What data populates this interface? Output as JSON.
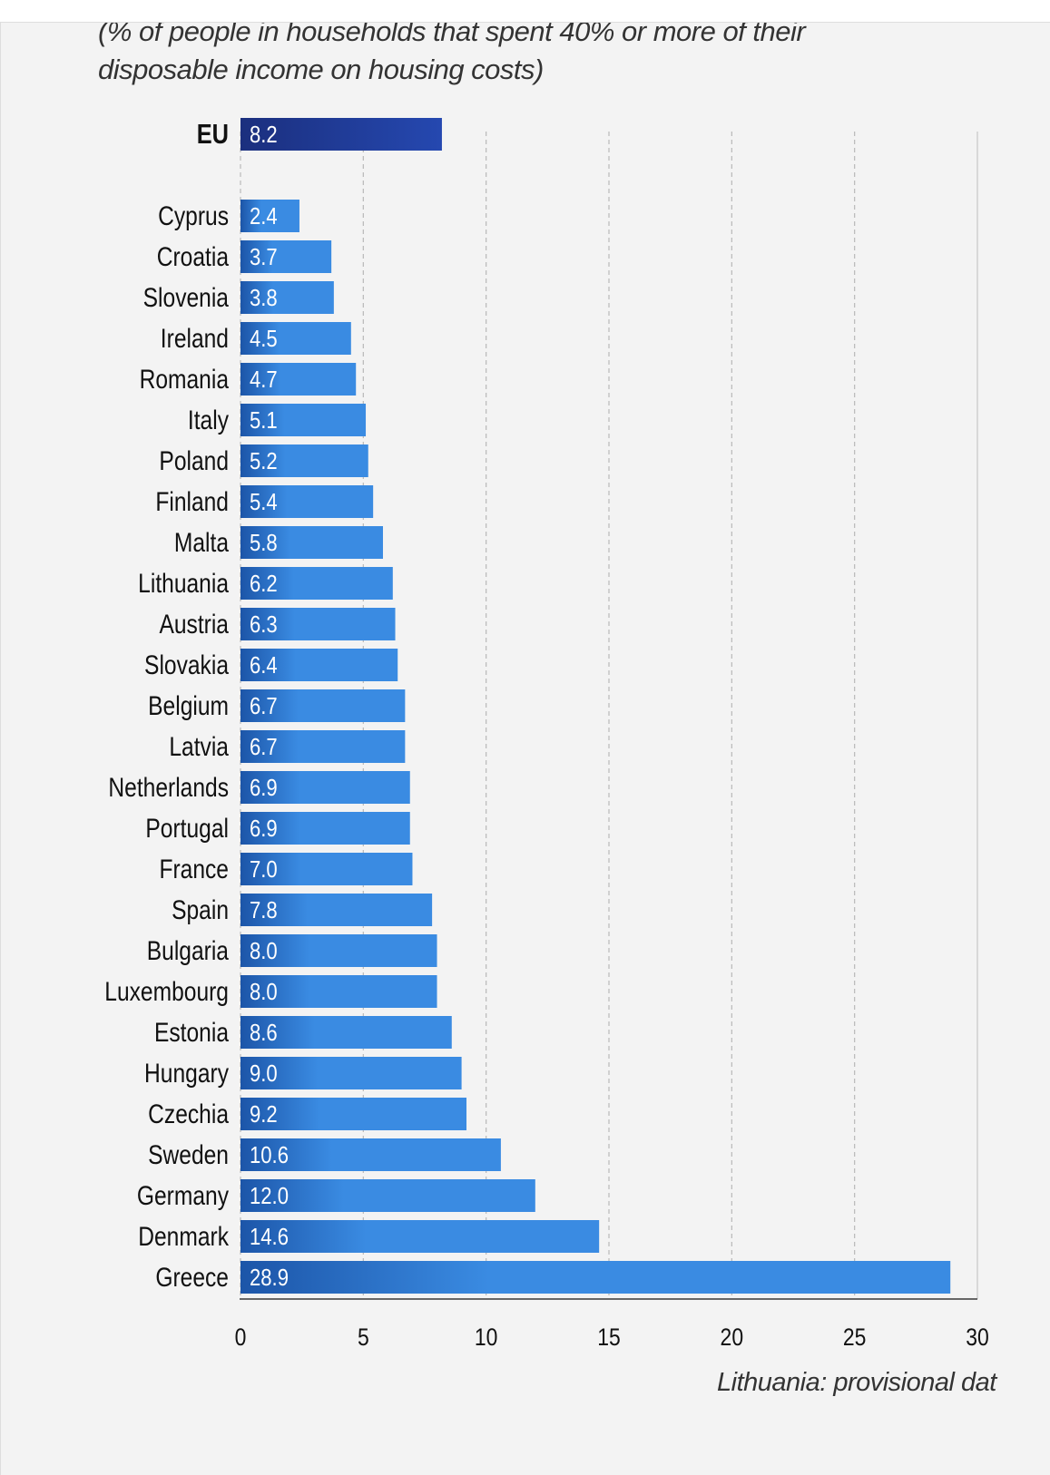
{
  "chart_data": {
    "type": "bar",
    "orientation": "horizontal",
    "subtitle_line1": "(% of people in households that spent 40% or more of their",
    "subtitle_line2": "disposable income on housing costs)",
    "aggregate": {
      "label": "EU",
      "value": 8.2
    },
    "categories": [
      "Cyprus",
      "Croatia",
      "Slovenia",
      "Ireland",
      "Romania",
      "Italy",
      "Poland",
      "Finland",
      "Malta",
      "Lithuania",
      "Austria",
      "Slovakia",
      "Belgium",
      "Latvia",
      "Netherlands",
      "Portugal",
      "France",
      "Spain",
      "Bulgaria",
      "Luxembourg",
      "Estonia",
      "Hungary",
      "Czechia",
      "Sweden",
      "Germany",
      "Denmark",
      "Greece"
    ],
    "values": [
      2.4,
      3.7,
      3.8,
      4.5,
      4.7,
      5.1,
      5.2,
      5.4,
      5.8,
      6.2,
      6.3,
      6.4,
      6.7,
      6.7,
      6.9,
      6.9,
      7.0,
      7.8,
      8.0,
      8.0,
      8.6,
      9.0,
      9.2,
      10.6,
      12.0,
      14.6,
      28.9
    ],
    "xlim": [
      0,
      30
    ],
    "xticks": [
      0,
      5,
      10,
      15,
      20,
      25,
      30
    ],
    "grid": "vertical dashed",
    "footnote": "Lithuania: provisional dat",
    "colors": {
      "eu_start": "#1b2f7e",
      "eu_end": "#2548b0",
      "bar_start": "#1c55a8",
      "bar_end": "#3a8be2",
      "text": "#111111"
    }
  }
}
